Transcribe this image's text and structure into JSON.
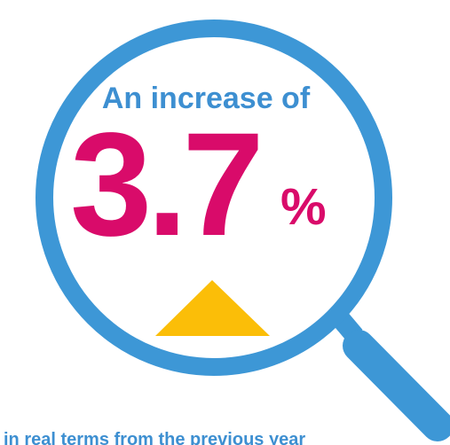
{
  "graphic": {
    "headline": "An increase of",
    "value": "3.7",
    "unit": "%",
    "caption": "in real terms from the previous year",
    "direction": "up"
  },
  "colors": {
    "lens_ring": "#3d97d6",
    "headline": "#3d8fd1",
    "value": "#d90b6a",
    "triangle": "#fbbe08",
    "caption": "#3d8fd1"
  },
  "icons": {
    "magnifier": "magnifying-glass-icon",
    "indicator": "up-triangle-icon"
  }
}
